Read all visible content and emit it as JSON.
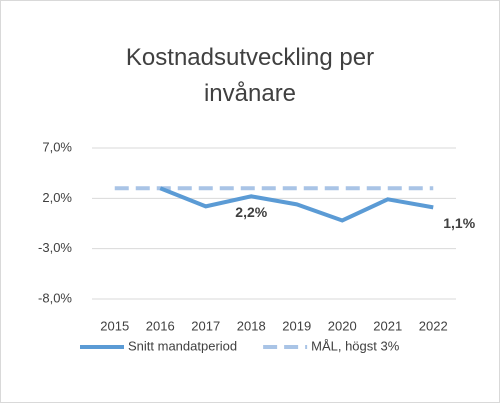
{
  "chart_data": {
    "type": "line",
    "title": "Kostnadsutveckling per invånare",
    "categories": [
      "2015",
      "2016",
      "2017",
      "2018",
      "2019",
      "2020",
      "2021",
      "2022"
    ],
    "series": [
      {
        "name": "Snitt mandatperiod",
        "color": "#5b9bd5",
        "dashed": false,
        "values": [
          null,
          3.0,
          1.2,
          2.2,
          1.4,
          -0.2,
          1.9,
          1.1
        ],
        "value_labels": [
          null,
          null,
          null,
          "2,2%",
          null,
          null,
          null,
          "1,1%"
        ]
      },
      {
        "name": "MÅL, högst 3%",
        "color": "#a9c4e6",
        "dashed": true,
        "values": [
          3,
          3,
          3,
          3,
          3,
          3,
          3,
          3
        ]
      }
    ],
    "ylim": [
      -8,
      7
    ],
    "yticks": [
      {
        "value": 7,
        "label": "7,0%"
      },
      {
        "value": 2,
        "label": "2,0%"
      },
      {
        "value": -3,
        "label": "-3,0%"
      },
      {
        "value": -8,
        "label": "-8,0%"
      }
    ],
    "grid": true,
    "legend": "bottom"
  }
}
